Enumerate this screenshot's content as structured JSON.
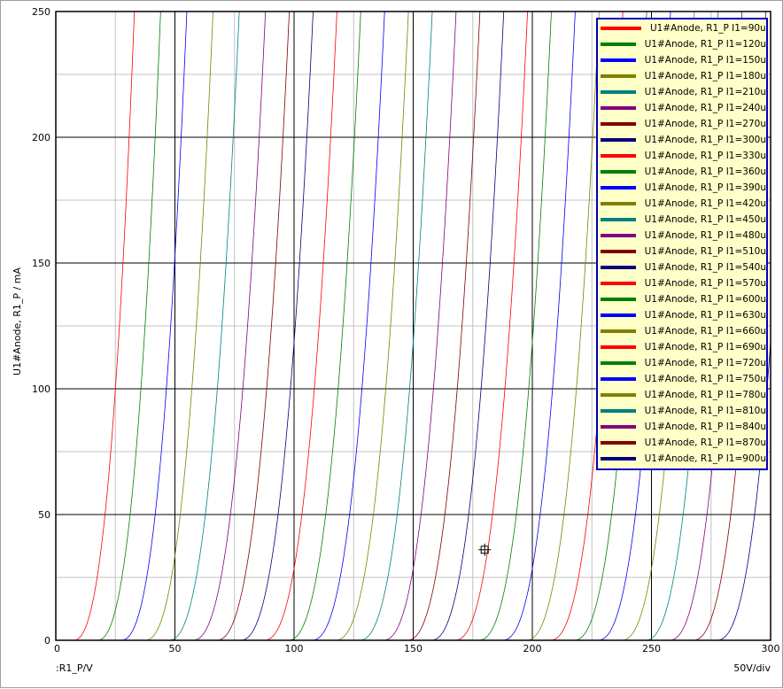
{
  "chart_data": {
    "type": "line",
    "xlabel": ":R1_P/V",
    "ylabel": "U1#Anode, R1_P / mA",
    "scale_note": "50V/div",
    "xlim": [
      0,
      300
    ],
    "ylim": [
      0,
      250
    ],
    "x_ticks": [
      "0",
      "50",
      "100",
      "150",
      "200",
      "250",
      "300"
    ],
    "y_ticks": [
      "0",
      "50",
      "100",
      "150",
      "200",
      "250"
    ],
    "grid": true,
    "legend_position": "top-right",
    "cursor": {
      "x": 180,
      "y": 36
    },
    "curve_shape_exponent": 2.5,
    "series": [
      {
        "name": "U1#Anode, R1_P I1=90u",
        "color": "#ff0000",
        "x_at_0mA": 7,
        "x_at_250mA": 33
      },
      {
        "name": "U1#Anode, R1_P I1=120u",
        "color": "#008000",
        "x_at_0mA": 17,
        "x_at_250mA": 44
      },
      {
        "name": "U1#Anode, R1_P I1=150u",
        "color": "#0000ff",
        "x_at_0mA": 27,
        "x_at_250mA": 55
      },
      {
        "name": "U1#Anode, R1_P I1=180u",
        "color": "#808000",
        "x_at_0mA": 37,
        "x_at_250mA": 66
      },
      {
        "name": "U1#Anode, R1_P I1=210u",
        "color": "#008080",
        "x_at_0mA": 47,
        "x_at_250mA": 77
      },
      {
        "name": "U1#Anode, R1_P I1=240u",
        "color": "#800080",
        "x_at_0mA": 57,
        "x_at_250mA": 88
      },
      {
        "name": "U1#Anode, R1_P I1=270u",
        "color": "#800000",
        "x_at_0mA": 67,
        "x_at_250mA": 98
      },
      {
        "name": "U1#Anode, R1_P I1=300u",
        "color": "#000080",
        "x_at_0mA": 77,
        "x_at_250mA": 108
      },
      {
        "name": "U1#Anode, R1_P I1=330u",
        "color": "#ff0000",
        "x_at_0mA": 87,
        "x_at_250mA": 118
      },
      {
        "name": "U1#Anode, R1_P I1=360u",
        "color": "#008000",
        "x_at_0mA": 97,
        "x_at_250mA": 128
      },
      {
        "name": "U1#Anode, R1_P I1=390u",
        "color": "#0000ff",
        "x_at_0mA": 107,
        "x_at_250mA": 138
      },
      {
        "name": "U1#Anode, R1_P I1=420u",
        "color": "#808000",
        "x_at_0mA": 117,
        "x_at_250mA": 148
      },
      {
        "name": "U1#Anode, R1_P I1=450u",
        "color": "#008080",
        "x_at_0mA": 127,
        "x_at_250mA": 158
      },
      {
        "name": "U1#Anode, R1_P I1=480u",
        "color": "#800080",
        "x_at_0mA": 137,
        "x_at_250mA": 168
      },
      {
        "name": "U1#Anode, R1_P I1=510u",
        "color": "#800000",
        "x_at_0mA": 147,
        "x_at_250mA": 178
      },
      {
        "name": "U1#Anode, R1_P I1=540u",
        "color": "#000080",
        "x_at_0mA": 157,
        "x_at_250mA": 188
      },
      {
        "name": "U1#Anode, R1_P I1=570u",
        "color": "#ff0000",
        "x_at_0mA": 167,
        "x_at_250mA": 198
      },
      {
        "name": "U1#Anode, R1_P I1=600u",
        "color": "#008000",
        "x_at_0mA": 177,
        "x_at_250mA": 208
      },
      {
        "name": "U1#Anode, R1_P I1=630u",
        "color": "#0000ff",
        "x_at_0mA": 187,
        "x_at_250mA": 218
      },
      {
        "name": "U1#Anode, R1_P I1=660u",
        "color": "#808000",
        "x_at_0mA": 197,
        "x_at_250mA": 228
      },
      {
        "name": "U1#Anode, R1_P I1=690u",
        "color": "#ff0000",
        "x_at_0mA": 207,
        "x_at_250mA": 238
      },
      {
        "name": "U1#Anode, R1_P I1=720u",
        "color": "#008000",
        "x_at_0mA": 217,
        "x_at_250mA": 248
      },
      {
        "name": "U1#Anode, R1_P I1=750u",
        "color": "#0000ff",
        "x_at_0mA": 227,
        "x_at_250mA": 258
      },
      {
        "name": "U1#Anode, R1_P I1=780u",
        "color": "#808000",
        "x_at_0mA": 237,
        "x_at_250mA": 268
      },
      {
        "name": "U1#Anode, R1_P I1=810u",
        "color": "#008080",
        "x_at_0mA": 247,
        "x_at_250mA": 278
      },
      {
        "name": "U1#Anode, R1_P I1=840u",
        "color": "#800080",
        "x_at_0mA": 257,
        "x_at_250mA": 288
      },
      {
        "name": "U1#Anode, R1_P I1=870u",
        "color": "#800000",
        "x_at_0mA": 267,
        "x_at_250mA": 298
      },
      {
        "name": "U1#Anode, R1_P I1=900u",
        "color": "#000080",
        "x_at_0mA": 277,
        "x_at_250mA": 308
      }
    ]
  }
}
